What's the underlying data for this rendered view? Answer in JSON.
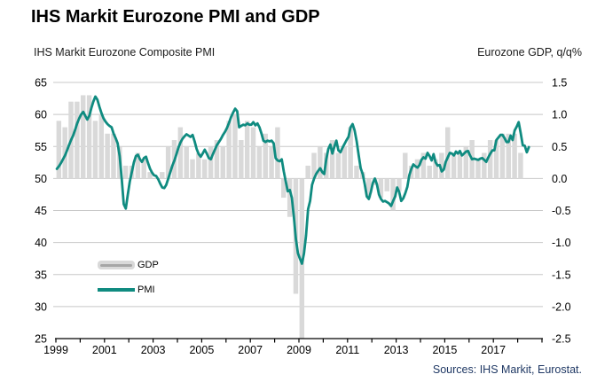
{
  "header": {
    "title": "IHS Markit Eurozone PMI and GDP"
  },
  "axis_titles": {
    "left": "IHS Markit Eurozone Composite PMI",
    "right": "Eurozone GDP, q/q%"
  },
  "legend": {
    "gdp_label": "GDP",
    "pmi_label": "PMI"
  },
  "footer": {
    "sources": "Sources: IHS Markit, Eurostat."
  },
  "colors": {
    "pmi_line": "#0f8b80",
    "gdp_bar": "#d9d9d9",
    "gridline": "#c8c8c8",
    "axis": "#000000",
    "source_text": "#1f3864"
  },
  "chart_data": {
    "type": "combo",
    "title": "IHS Markit Eurozone PMI and GDP",
    "left_axis": {
      "label": "IHS Markit Eurozone Composite PMI",
      "min": 25,
      "max": 65,
      "tick_step": 5,
      "ticks": [
        25,
        30,
        35,
        40,
        45,
        50,
        55,
        60,
        65
      ]
    },
    "right_axis": {
      "label": "Eurozone GDP, q/q%",
      "min": -2.5,
      "max": 1.5,
      "tick_step": 0.5,
      "ticks": [
        -2.5,
        -2.0,
        -1.5,
        -1.0,
        -0.5,
        0.0,
        0.5,
        1.0,
        1.5
      ]
    },
    "x_axis": {
      "start_year": 1999,
      "end_year": 2019,
      "tick_every_years": 1,
      "label_years": [
        1999,
        2001,
        2003,
        2005,
        2007,
        2009,
        2011,
        2013,
        2015,
        2017
      ]
    },
    "grid": true,
    "legend_position": "inside-left",
    "series": [
      {
        "name": "GDP",
        "type": "bar",
        "frequency": "quarterly",
        "start": "1999Q1",
        "values": [
          0.9,
          0.8,
          1.2,
          1.2,
          1.3,
          1.3,
          0.9,
          1.0,
          0.7,
          0.7,
          0.5,
          0.2,
          0.2,
          0.4,
          0.3,
          0.1,
          0.0,
          0.1,
          0.5,
          0.6,
          0.8,
          0.5,
          0.3,
          0.4,
          0.3,
          0.5,
          0.6,
          0.5,
          0.9,
          1.0,
          0.6,
          0.9,
          0.8,
          0.5,
          0.7,
          0.5,
          0.8,
          -0.3,
          -0.6,
          -1.8,
          -2.5,
          0.2,
          0.4,
          0.5,
          0.4,
          0.6,
          0.4,
          0.5,
          0.8,
          0.2,
          0.1,
          -0.3,
          -0.1,
          -0.3,
          -0.2,
          -0.5,
          -0.2,
          0.4,
          0.2,
          0.3,
          0.4,
          0.2,
          0.3,
          0.4,
          0.8,
          0.4,
          0.4,
          0.5,
          0.6,
          0.3,
          0.4,
          0.6,
          0.6,
          0.7,
          0.7,
          0.7,
          0.4
        ]
      },
      {
        "name": "PMI",
        "type": "line",
        "frequency": "monthly",
        "start": "1999-01",
        "values": [
          51.5,
          51.9,
          52.4,
          53.0,
          53.6,
          54.4,
          55.2,
          56.0,
          56.7,
          57.6,
          58.6,
          59.4,
          60.0,
          60.4,
          59.8,
          59.2,
          59.8,
          61.0,
          62.0,
          62.8,
          62.3,
          61.2,
          60.2,
          59.4,
          58.9,
          58.5,
          58.2,
          58.0,
          57.0,
          56.3,
          55.5,
          53.5,
          50.0,
          46.0,
          45.3,
          47.5,
          49.5,
          51.0,
          52.5,
          53.5,
          53.7,
          53.0,
          52.6,
          53.2,
          53.4,
          52.4,
          51.5,
          50.9,
          50.5,
          50.4,
          49.9,
          49.2,
          48.6,
          48.5,
          49.0,
          50.0,
          51.0,
          52.0,
          52.8,
          53.8,
          54.8,
          55.6,
          56.2,
          56.6,
          56.9,
          56.7,
          56.5,
          56.8,
          55.8,
          54.6,
          53.8,
          53.4,
          53.9,
          54.5,
          53.9,
          53.2,
          53.0,
          53.8,
          54.5,
          55.2,
          55.7,
          56.2,
          56.8,
          57.3,
          57.9,
          58.7,
          59.6,
          60.3,
          60.9,
          60.5,
          58.0,
          58.2,
          58.4,
          58.3,
          58.6,
          58.4,
          58.4,
          58.8,
          58.3,
          58.6,
          58.0,
          57.0,
          55.9,
          55.7,
          55.9,
          55.8,
          55.9,
          55.5,
          53.2,
          52.8,
          52.7,
          53.0,
          51.1,
          49.5,
          48.0,
          48.2,
          47.0,
          44.0,
          40.5,
          38.3,
          37.5,
          36.7,
          38.3,
          41.1,
          45.2,
          46.5,
          49.0,
          50.0,
          50.7,
          51.2,
          51.6,
          51.0,
          50.7,
          53.0,
          54.6,
          55.3,
          53.9,
          55.0,
          55.9,
          54.4,
          54.1,
          54.8,
          55.4,
          56.0,
          56.5,
          58.0,
          58.5,
          57.5,
          55.8,
          53.6,
          51.6,
          50.7,
          49.1,
          47.2,
          46.8,
          47.9,
          49.3,
          50.0,
          49.1,
          47.5,
          46.8,
          46.4,
          46.5,
          46.3,
          46.1,
          45.7,
          46.5,
          47.2,
          48.6,
          47.9,
          46.5,
          46.9,
          47.7,
          48.7,
          50.5,
          51.5,
          52.2,
          51.9,
          51.7,
          52.1,
          52.9,
          53.3,
          53.1,
          54.0,
          53.5,
          52.8,
          53.8,
          52.5,
          52.0,
          52.1,
          51.1,
          51.4,
          52.6,
          53.3,
          54.0,
          53.9,
          53.6,
          54.2,
          53.9,
          54.3,
          53.6,
          53.9,
          54.2,
          54.3,
          53.6,
          53.0,
          53.1,
          53.0,
          52.9,
          53.1,
          53.2,
          52.9,
          52.6,
          53.3,
          53.9,
          54.4,
          54.4,
          56.0,
          56.4,
          56.8,
          56.8,
          56.3,
          55.7,
          55.7,
          56.7,
          56.0,
          57.5,
          58.1,
          58.8,
          57.1,
          55.2,
          55.1,
          54.1,
          54.9
        ]
      }
    ]
  }
}
